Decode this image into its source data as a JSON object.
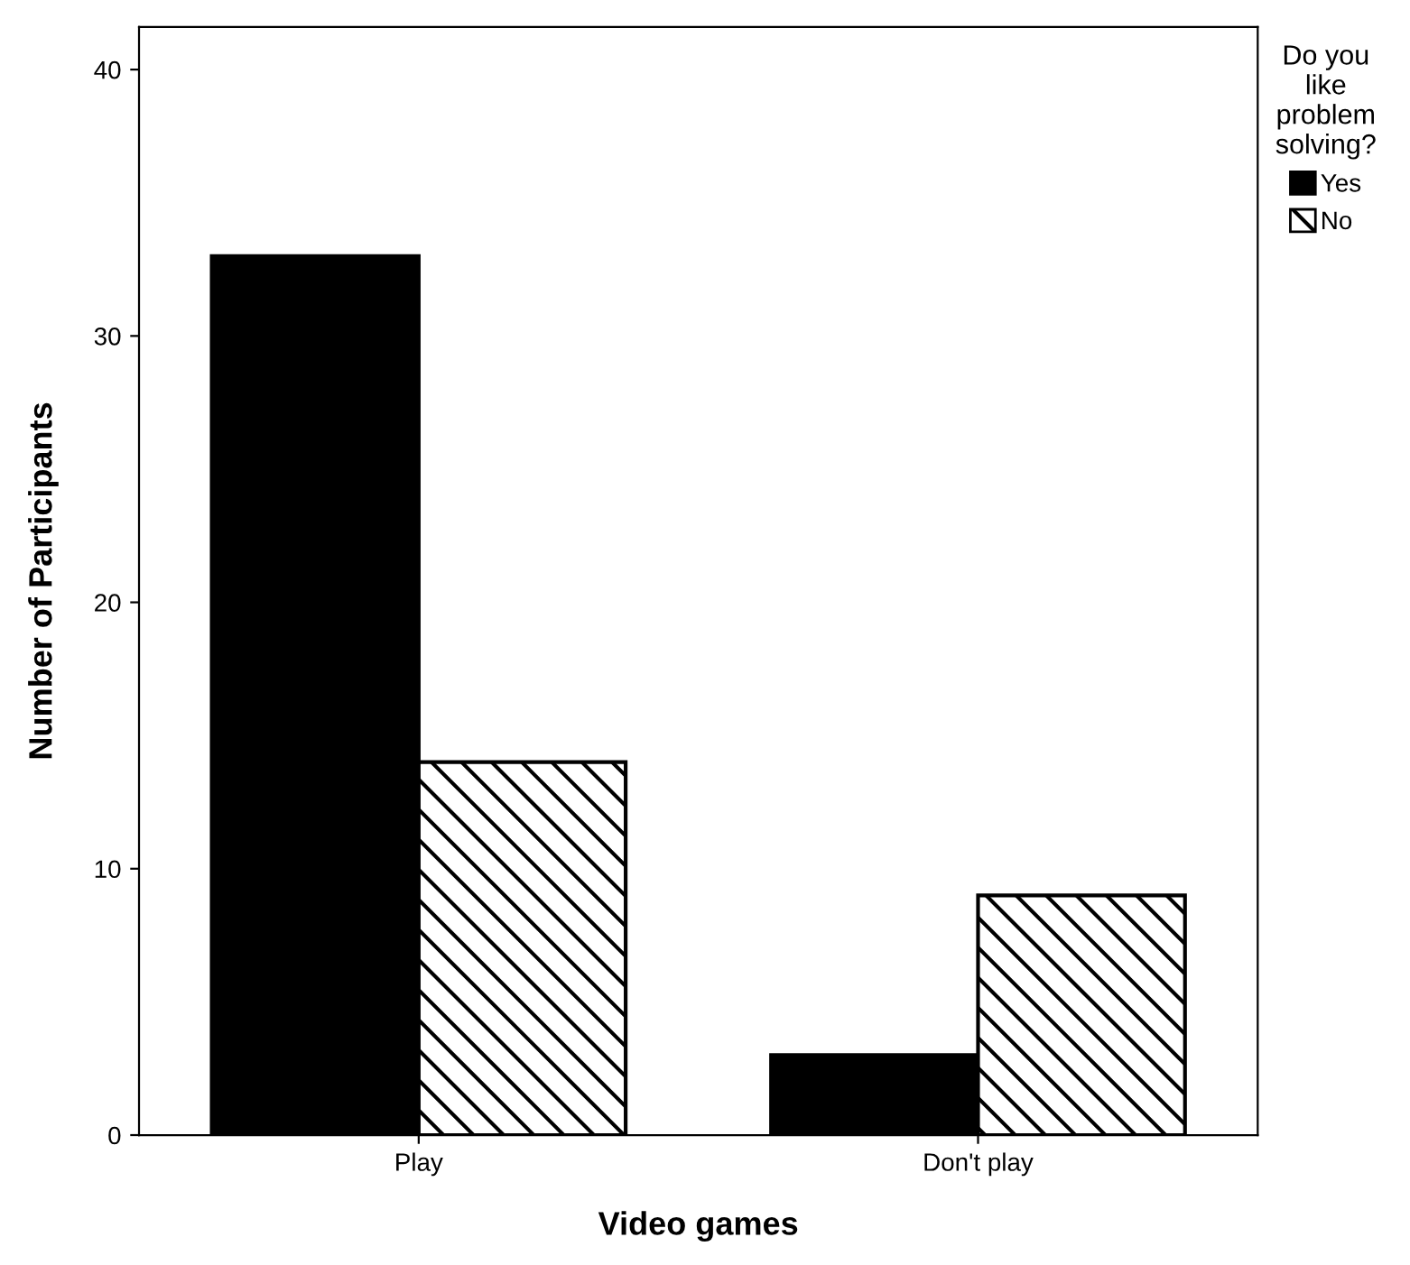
{
  "chart_data": {
    "type": "bar",
    "xlabel": "Video games",
    "ylabel": "Number of Participants",
    "legend_title": "Do you\nlike\nproblem\nsolving?",
    "categories": [
      "Play",
      "Don't play"
    ],
    "series": [
      {
        "name": "Yes",
        "color": "#000000",
        "values": [
          33,
          3
        ]
      },
      {
        "name": "No",
        "color": "#ffffff",
        "values": [
          14,
          9
        ]
      }
    ],
    "ylim": [
      0,
      41.6
    ],
    "yticks": [
      0,
      10,
      20,
      30,
      40
    ],
    "grid": false,
    "legend": "top right"
  }
}
